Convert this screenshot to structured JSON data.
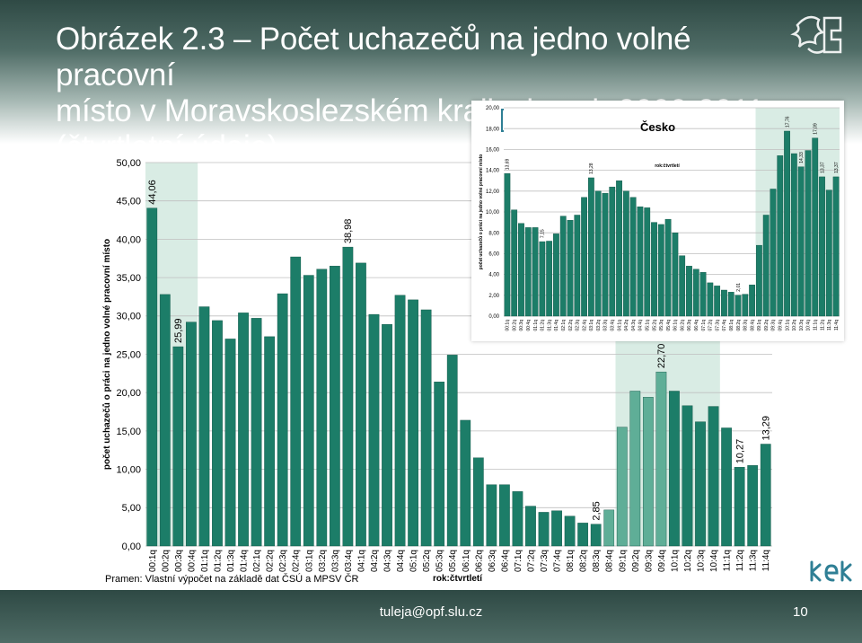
{
  "title": {
    "line1": "Obrázek 2.3 – Počet uchazečů na jedno volné pracovní",
    "line2": "místo v Moravskoslezském kraji v letech 2000-2011",
    "line3": "(čtvrtletní údaje)"
  },
  "source": "Pramen: Vlastní výpočet na základě dat ČSÚ a MPSV ČR",
  "footer": {
    "email": "tuleja@opf.slu.cz",
    "page": "10"
  },
  "colors": {
    "bar": "#1c7d68",
    "bar_light": "#5fae97",
    "highlight": "#d9ece4",
    "header": "#3c5853"
  },
  "chart_data": [
    {
      "type": "bar",
      "ylabel": "počet uchazečů o práci na jedno volné pracovní místo",
      "xlabel": "rok:čtvrtletí",
      "ylim": [
        0,
        50
      ],
      "yticks": [
        "0,00",
        "5,00",
        "10,00",
        "15,00",
        "20,00",
        "25,00",
        "30,00",
        "35,00",
        "40,00",
        "45,00",
        "50,00"
      ],
      "grid": true,
      "highlight_ranges": [
        [
          0,
          3
        ],
        [
          36,
          43
        ]
      ],
      "categories": [
        "00:1q",
        "00:2q",
        "00:3q",
        "00:4q",
        "01:1q",
        "01:2q",
        "01:3q",
        "01:4q",
        "02:1q",
        "02:2q",
        "02:3q",
        "02:4q",
        "03:1q",
        "03:2q",
        "03:3q",
        "03:4q",
        "04:1q",
        "04:2q",
        "04:3q",
        "04:4q",
        "05:1q",
        "05:2q",
        "05:3q",
        "05:4q",
        "06:1q",
        "06:2q",
        "06:3q",
        "06:4q",
        "07:1q",
        "07:2q",
        "07:3q",
        "07:4q",
        "08:1q",
        "08:2q",
        "08:3q",
        "08:4q",
        "09:1q",
        "09:2q",
        "09:3q",
        "09:4q",
        "10:1q",
        "10:2q",
        "10:3q",
        "10:4q",
        "11:1q",
        "11:2q",
        "11:3q",
        "11:4q"
      ],
      "values": [
        44.06,
        32.8,
        25.99,
        29.2,
        31.2,
        29.4,
        27.0,
        30.4,
        29.7,
        27.3,
        32.9,
        37.7,
        35.3,
        36.1,
        36.5,
        38.98,
        36.9,
        30.2,
        28.9,
        32.7,
        32.1,
        30.8,
        21.4,
        24.9,
        16.4,
        11.5,
        8.0,
        8.0,
        7.1,
        5.2,
        4.4,
        4.6,
        3.9,
        3.0,
        2.85,
        4.7,
        15.5,
        20.2,
        19.4,
        22.7,
        20.2,
        18.3,
        16.2,
        18.2,
        15.4,
        10.27,
        10.5,
        13.29
      ],
      "labels": [
        {
          "i": 0,
          "text": "44,06"
        },
        {
          "i": 2,
          "text": "25,99"
        },
        {
          "i": 15,
          "text": "38,98"
        },
        {
          "i": 34,
          "text": "2,85"
        },
        {
          "i": 39,
          "text": "22,70"
        },
        {
          "i": 45,
          "text": "10,27"
        },
        {
          "i": 47,
          "text": "13,29"
        }
      ]
    },
    {
      "type": "bar",
      "title": "Česko",
      "ylabel": "počet uchazečů o práci na jedno volné pracovní místo",
      "xlabel": "rok:čtvrtletí",
      "ylim": [
        0,
        20
      ],
      "yticks": [
        "0,00",
        "2,00",
        "4,00",
        "6,00",
        "8,00",
        "10,00",
        "12,00",
        "14,00",
        "16,00",
        "18,00",
        "20,00"
      ],
      "grid": true,
      "highlight_ranges": [
        [
          36,
          47
        ]
      ],
      "categories": [
        "00:1q",
        "00:2q",
        "00:3q",
        "00:4q",
        "01:1q",
        "01:2q",
        "01:3q",
        "01:4q",
        "02:1q",
        "02:2q",
        "02:3q",
        "02:4q",
        "03:1q",
        "03:2q",
        "03:3q",
        "03:4q",
        "04:1q",
        "04:2q",
        "04:3q",
        "04:4q",
        "05:1q",
        "05:2q",
        "05:3q",
        "05:4q",
        "06:1q",
        "06:2q",
        "06:3q",
        "06:4q",
        "07:1q",
        "07:2q",
        "07:3q",
        "07:4q",
        "08:1q",
        "08:2q",
        "08:3q",
        "08:4q",
        "09:1q",
        "09:2q",
        "09:3q",
        "09:4q",
        "10:1q",
        "10:2q",
        "10:3q",
        "10:4q",
        "11:1q",
        "11:2q",
        "11:3q",
        "11:4q"
      ],
      "values": [
        13.69,
        10.2,
        8.9,
        8.5,
        8.5,
        7.15,
        7.2,
        7.9,
        9.6,
        9.2,
        9.7,
        11.4,
        13.28,
        12.0,
        11.8,
        12.4,
        13.0,
        12.0,
        11.4,
        10.5,
        10.4,
        9.0,
        8.8,
        9.3,
        8.0,
        5.8,
        4.8,
        4.5,
        4.2,
        3.2,
        2.9,
        2.5,
        2.3,
        2.01,
        2.1,
        3.0,
        6.8,
        9.7,
        12.2,
        15.4,
        17.76,
        15.6,
        14.33,
        15.9,
        17.09,
        13.37,
        12.1,
        13.37
      ],
      "labels": [
        {
          "i": 0,
          "text": "13,69"
        },
        {
          "i": 5,
          "text": "7,15"
        },
        {
          "i": 12,
          "text": "13,28"
        },
        {
          "i": 33,
          "text": "2,01"
        },
        {
          "i": 40,
          "text": "17,76"
        },
        {
          "i": 42,
          "text": "14,33"
        },
        {
          "i": 44,
          "text": "17,09"
        },
        {
          "i": 45,
          "text": "13,37"
        },
        {
          "i": 47,
          "text": "13,37"
        }
      ]
    }
  ]
}
